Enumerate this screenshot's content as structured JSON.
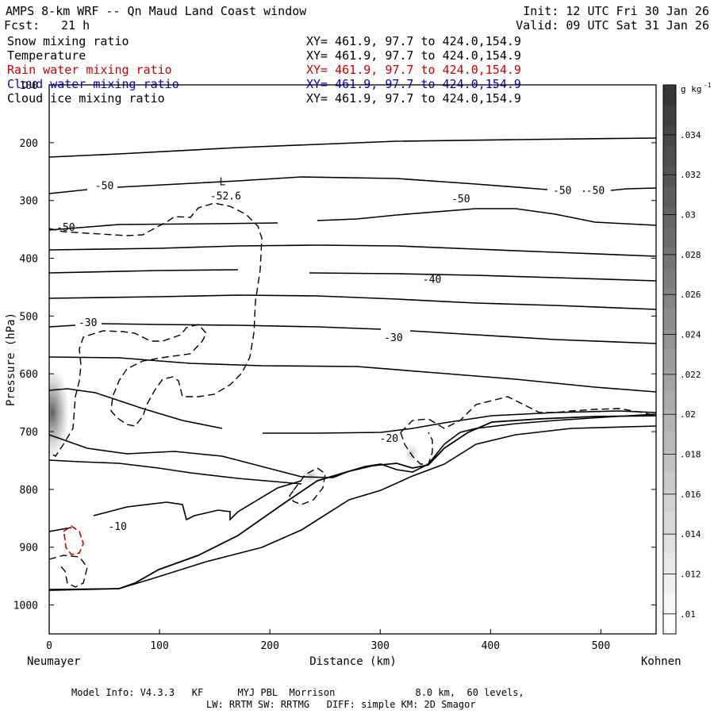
{
  "header": {
    "title": "AMPS 8-km WRF -- Qn Maud Land Coast window",
    "fcst_label": "Fcst:",
    "fcst_value": "21 h",
    "init": "Init: 12 UTC Fri 30 Jan 26",
    "valid": "Valid: 09 UTC Sat 31 Jan 26"
  },
  "fields": [
    {
      "name": "Snow mixing ratio",
      "xy": "XY= 461.9, 97.7 to 424.0,154.9",
      "color": "#000000"
    },
    {
      "name": "Temperature",
      "xy": "XY= 461.9, 97.7 to 424.0,154.9",
      "color": "#000000"
    },
    {
      "name": "Rain water mixing ratio",
      "xy": "XY= 461.9, 97.7 to 424.0,154.9",
      "color": "#cc0000"
    },
    {
      "name": "Cloud water mixing ratio",
      "xy": "XY= 461.9, 97.7 to 424.0,154.9",
      "color": "#0000cc"
    },
    {
      "name": "Cloud ice mixing ratio",
      "xy": "XY= 461.9, 97.7 to 424.0,154.9",
      "color": "#000000"
    }
  ],
  "footer": {
    "line1": "Model Info: V4.3.3   KF      MYJ PBL  Morrison              8.0 km,  60 levels,",
    "line2": "LW: RRTM SW: RRTMG   DIFF: simple KM: 2D Smagor"
  },
  "chart_data": {
    "type": "cross-section contour",
    "xlabel": "Distance (km)",
    "ylabel": "Pressure (hPa)",
    "left_endpoint": "Neumayer",
    "right_endpoint": "Kohnen",
    "xlim": [
      0,
      550
    ],
    "ylim": [
      1050,
      100
    ],
    "x_ticks": [
      0,
      100,
      200,
      300,
      400,
      500
    ],
    "y_ticks": [
      100,
      200,
      300,
      400,
      500,
      600,
      700,
      800,
      900,
      1000
    ],
    "colorbar": {
      "unit": "g kg",
      "unit_sup": "-1",
      "ticks": [
        ".034",
        ".032",
        ".03",
        ".028",
        ".026",
        ".024",
        ".022",
        ".02",
        ".018",
        ".016",
        ".014",
        ".012",
        ".01"
      ],
      "tick_values": [
        0.034,
        0.032,
        0.03,
        0.028,
        0.026,
        0.024,
        0.022,
        0.02,
        0.018,
        0.016,
        0.014,
        0.012,
        0.01
      ],
      "range": [
        0.009,
        0.0365
      ]
    },
    "isotherm_labels": [
      {
        "text": "-50",
        "x": 50,
        "p": 275
      },
      {
        "text": "-50",
        "x": 15,
        "p": 347
      },
      {
        "text": "-50",
        "x": 373,
        "p": 298
      },
      {
        "text": "-50",
        "x": 465,
        "p": 283
      },
      {
        "text": "-50",
        "x": 495,
        "p": 283
      },
      {
        "text": "-40",
        "x": 347,
        "p": 437
      },
      {
        "text": "-30",
        "x": 35,
        "p": 512
      },
      {
        "text": "-30",
        "x": 312,
        "p": 538
      },
      {
        "text": "-20",
        "x": 308,
        "p": 712
      },
      {
        "text": "-10",
        "x": 62,
        "p": 865
      }
    ],
    "low_marker": {
      "letter": "L",
      "value": "-52.6",
      "x": 157,
      "p": 286
    }
  }
}
